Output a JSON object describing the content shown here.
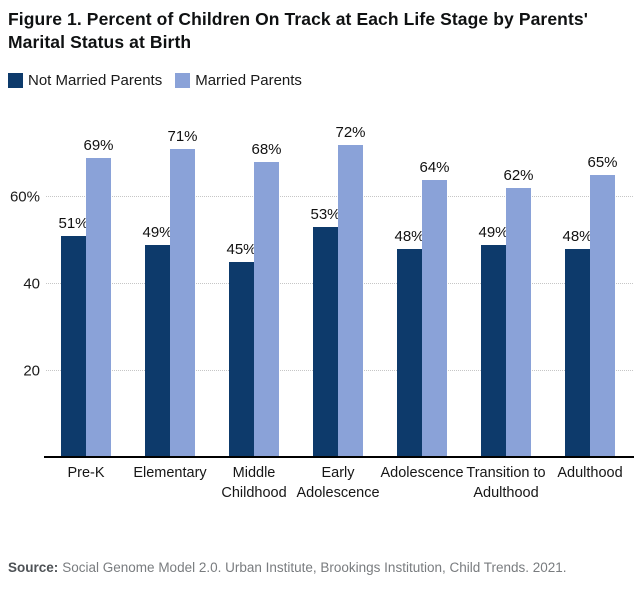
{
  "figure": {
    "title": "Figure 1. Percent of Children On Track at Each Life Stage by Parents' Marital Status at Birth",
    "source_label": "Source:",
    "source_text": "Social Genome Model 2.0. Urban Institute, Brookings Institution, Child Trends. 2021."
  },
  "colors": {
    "not_married": "#0d3a6b",
    "married": "#8aa2d8",
    "gridline": "#c6c6c6",
    "axis": "#000000"
  },
  "chart_data": {
    "type": "bar",
    "title": "Figure 1. Percent of Children On Track at Each Life Stage by Parents' Marital Status at Birth",
    "categories": [
      "Pre-K",
      "Elementary",
      "Middle Childhood",
      "Early Adolescence",
      "Adolescence",
      "Transition to Adulthood",
      "Adulthood"
    ],
    "series": [
      {
        "name": "Not Married Parents",
        "color_key": "not_married",
        "values": [
          51,
          49,
          45,
          53,
          48,
          49,
          48
        ]
      },
      {
        "name": "Married Parents",
        "color_key": "married",
        "values": [
          69,
          71,
          68,
          72,
          64,
          62,
          65
        ]
      }
    ],
    "value_suffix": "%",
    "xlabel": "",
    "ylabel": "",
    "ylim": [
      0,
      80
    ],
    "yticks": [
      {
        "value": 20,
        "label": "20"
      },
      {
        "value": 40,
        "label": "40"
      },
      {
        "value": 60,
        "label": "60%"
      }
    ],
    "grid": "horizontal-dotted",
    "legend_position": "top-left"
  }
}
